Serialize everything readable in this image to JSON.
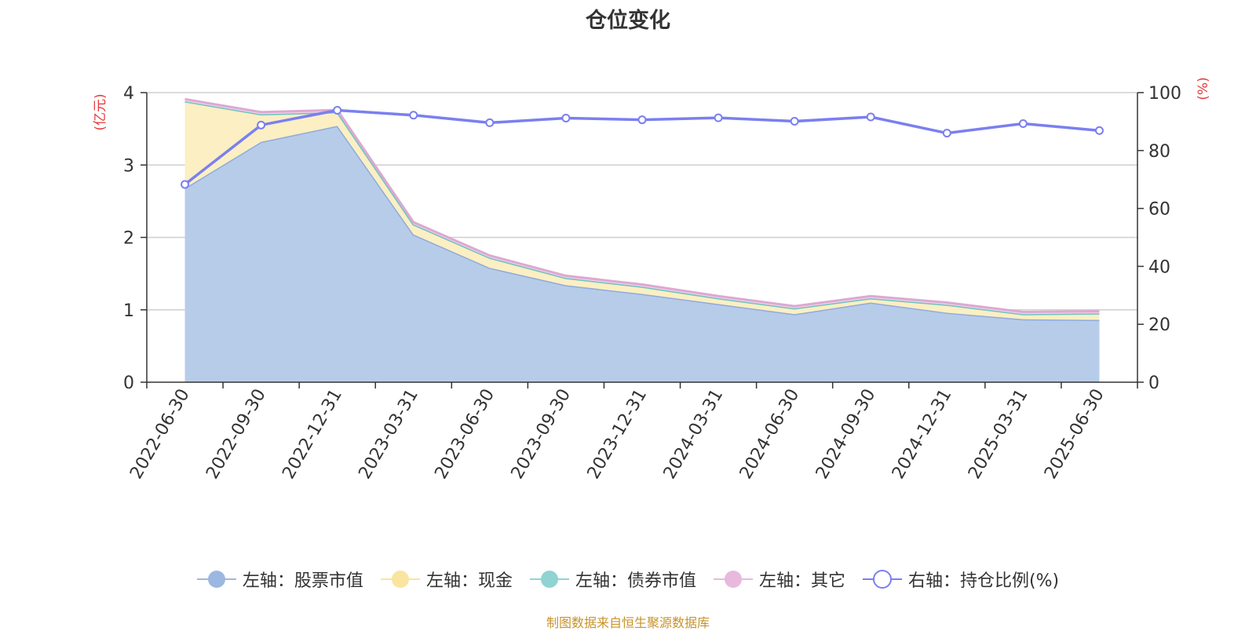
{
  "title": "仓位变化",
  "source": "制图数据来自恒生聚源数据库",
  "chart_data": {
    "type": "area",
    "title": "仓位变化",
    "categories": [
      "2022-06-30",
      "2022-09-30",
      "2022-12-31",
      "2023-03-31",
      "2023-06-30",
      "2023-09-30",
      "2023-12-31",
      "2024-03-31",
      "2024-06-30",
      "2024-09-30",
      "2024-12-31",
      "2025-03-31",
      "2025-06-30"
    ],
    "left_axis": {
      "unit": "(亿元)",
      "ylim": [
        0,
        4
      ],
      "ticks": [
        "0",
        "1",
        "2",
        "3",
        "4"
      ]
    },
    "right_axis": {
      "unit": "(%)",
      "ylim": [
        0,
        100
      ],
      "ticks": [
        "0",
        "20",
        "40",
        "60",
        "80",
        "100"
      ]
    },
    "grid": true,
    "legend_position": "bottom",
    "series": [
      {
        "name": "左轴：股票市值",
        "axis": "left",
        "kind": "stacked-area",
        "color": "#9db8e0",
        "values": [
          2.68,
          3.32,
          3.54,
          2.04,
          1.58,
          1.34,
          1.22,
          1.08,
          0.94,
          1.1,
          0.96,
          0.87,
          0.86
        ]
      },
      {
        "name": "左轴：现金",
        "axis": "left",
        "kind": "stacked-area",
        "color": "#f9e4a0",
        "values": [
          1.2,
          0.38,
          0.19,
          0.14,
          0.14,
          0.1,
          0.1,
          0.08,
          0.08,
          0.06,
          0.11,
          0.07,
          0.09
        ]
      },
      {
        "name": "左轴：债券市值",
        "axis": "left",
        "kind": "stacked-area",
        "color": "#8fd3d2",
        "values": [
          0,
          0,
          0,
          0,
          0,
          0,
          0,
          0,
          0,
          0,
          0,
          0,
          0
        ]
      },
      {
        "name": "左轴：其它",
        "axis": "left",
        "kind": "stacked-area",
        "color": "#e8b9dc",
        "values": [
          0.03,
          0.03,
          0.03,
          0.03,
          0.03,
          0.03,
          0.03,
          0.03,
          0.03,
          0.03,
          0.03,
          0.03,
          0.03
        ]
      },
      {
        "name": "右轴：持仓比例(%)",
        "axis": "right",
        "kind": "line",
        "color": "#7a7ff0",
        "values": [
          68.3,
          88.8,
          93.9,
          92.2,
          89.6,
          91.2,
          90.6,
          91.3,
          90.1,
          91.6,
          86.0,
          89.3,
          86.9
        ]
      }
    ]
  }
}
